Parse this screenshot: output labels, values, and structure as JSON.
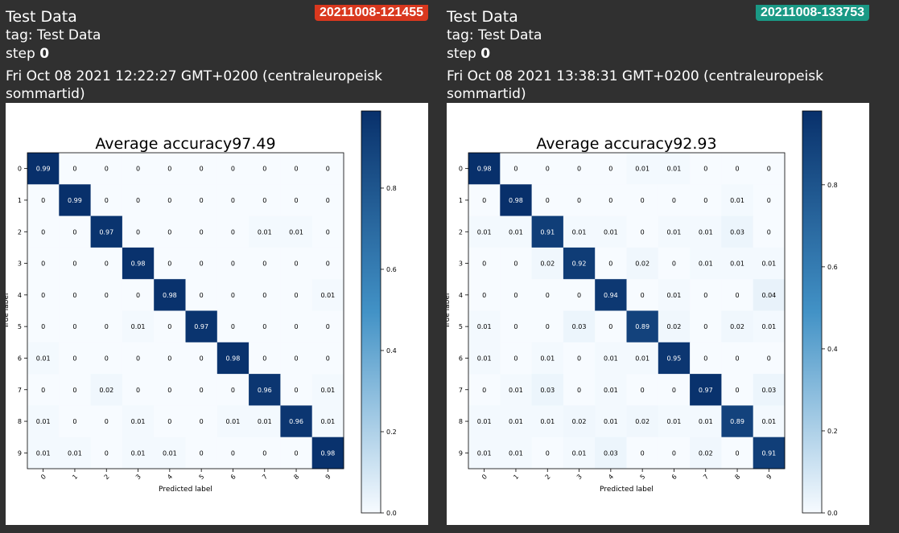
{
  "cards": [
    {
      "title": "Test Data",
      "run": "20211008-121455",
      "run_color": "#d9381e",
      "tag": "tag: Test Data",
      "step_label": "step ",
      "step_value": "0",
      "date": "Fri Oct 08 2021 12:22:27 GMT+0200 (centraleuropeisk sommartid)",
      "chart_data": {
        "type": "heatmap",
        "title": "Average accuracy97.49",
        "xlabel": "Predicted label",
        "ylabel": "True label",
        "x_categories": [
          "0",
          "1",
          "2",
          "3",
          "4",
          "5",
          "6",
          "7",
          "8",
          "9"
        ],
        "y_categories": [
          "0",
          "1",
          "2",
          "3",
          "4",
          "5",
          "6",
          "7",
          "8",
          "9"
        ],
        "values": [
          [
            0.99,
            0.0,
            0.0,
            0.0,
            0.0,
            0.0,
            0.0,
            0.0,
            0.0,
            0.0
          ],
          [
            0.0,
            0.99,
            0.0,
            0.0,
            0.0,
            0.0,
            0.0,
            0.0,
            0.0,
            0.0
          ],
          [
            0.0,
            0.0,
            0.97,
            0.0,
            0.0,
            0.0,
            0.0,
            0.01,
            0.01,
            0.0
          ],
          [
            0.0,
            0.0,
            0.0,
            0.98,
            0.0,
            0.0,
            0.0,
            0.0,
            0.0,
            0.0
          ],
          [
            0.0,
            0.0,
            0.0,
            0.0,
            0.98,
            0.0,
            0.0,
            0.0,
            0.0,
            0.01
          ],
          [
            0.0,
            0.0,
            0.0,
            0.01,
            0.0,
            0.97,
            0.0,
            0.0,
            0.0,
            0.0
          ],
          [
            0.01,
            0.0,
            0.0,
            0.0,
            0.0,
            0.0,
            0.98,
            0.0,
            0.0,
            0.0
          ],
          [
            0.0,
            0.0,
            0.02,
            0.0,
            0.0,
            0.0,
            0.0,
            0.96,
            0.0,
            0.01
          ],
          [
            0.01,
            0.0,
            0.0,
            0.01,
            0.0,
            0.0,
            0.01,
            0.01,
            0.96,
            0.01
          ],
          [
            0.01,
            0.01,
            0.0,
            0.01,
            0.01,
            0.0,
            0.0,
            0.0,
            0.0,
            0.98
          ]
        ],
        "colorbar_ticks": [
          "0.0",
          "0.2",
          "0.4",
          "0.6",
          "0.8"
        ],
        "colorbar_range": [
          0,
          0.99
        ],
        "colormap": [
          "#f7fbff",
          "#08306b"
        ]
      }
    },
    {
      "title": "Test Data",
      "run": "20211008-133753",
      "run_color": "#1a9985",
      "tag": "tag: Test Data",
      "step_label": "step ",
      "step_value": "0",
      "date": "Fri Oct 08 2021 13:38:31 GMT+0200 (centraleuropeisk sommartid)",
      "chart_data": {
        "type": "heatmap",
        "title": "Average accuracy92.93",
        "xlabel": "Predicted label",
        "ylabel": "True label",
        "x_categories": [
          "0",
          "1",
          "2",
          "3",
          "4",
          "5",
          "6",
          "7",
          "8",
          "9"
        ],
        "y_categories": [
          "0",
          "1",
          "2",
          "3",
          "4",
          "5",
          "6",
          "7",
          "8",
          "9"
        ],
        "values": [
          [
            0.98,
            0.0,
            0.0,
            0.0,
            0.0,
            0.01,
            0.01,
            0.0,
            0.0,
            0.0
          ],
          [
            0.0,
            0.98,
            0.0,
            0.0,
            0.0,
            0.0,
            0.0,
            0.0,
            0.01,
            0.0
          ],
          [
            0.01,
            0.01,
            0.91,
            0.01,
            0.01,
            0.0,
            0.01,
            0.01,
            0.03,
            0.0
          ],
          [
            0.0,
            0.0,
            0.02,
            0.92,
            0.0,
            0.02,
            0.0,
            0.01,
            0.01,
            0.01
          ],
          [
            0.0,
            0.0,
            0.0,
            0.0,
            0.94,
            0.0,
            0.01,
            0.0,
            0.0,
            0.04
          ],
          [
            0.01,
            0.0,
            0.0,
            0.03,
            0.0,
            0.89,
            0.02,
            0.0,
            0.02,
            0.01
          ],
          [
            0.01,
            0.0,
            0.01,
            0.0,
            0.01,
            0.01,
            0.95,
            0.0,
            0.0,
            0.0
          ],
          [
            0.0,
            0.01,
            0.03,
            0.0,
            0.01,
            0.0,
            0.0,
            0.97,
            0.0,
            0.03
          ],
          [
            0.01,
            0.01,
            0.01,
            0.02,
            0.01,
            0.02,
            0.01,
            0.01,
            0.89,
            0.01
          ],
          [
            0.01,
            0.01,
            0.0,
            0.01,
            0.03,
            0.0,
            0.0,
            0.02,
            0.0,
            0.91
          ]
        ],
        "colorbar_ticks": [
          "0.0",
          "0.2",
          "0.4",
          "0.6",
          "0.8"
        ],
        "colorbar_range": [
          0,
          0.98
        ],
        "colormap": [
          "#f7fbff",
          "#08306b"
        ]
      }
    }
  ]
}
